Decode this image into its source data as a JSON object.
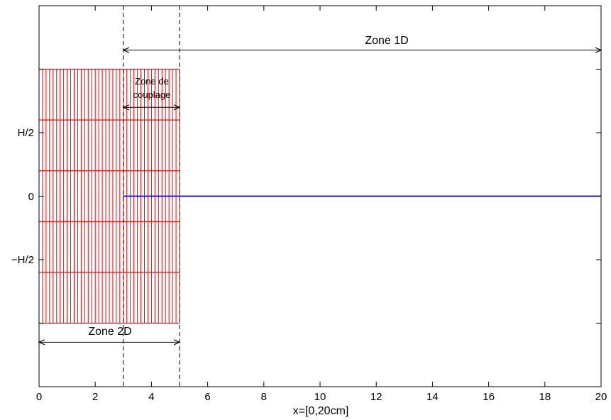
{
  "figure": {
    "x_axis": {
      "label": "x=[0,20cm]",
      "min": 0,
      "max": 20,
      "ticks": [
        0,
        2,
        4,
        6,
        8,
        10,
        12,
        14,
        16,
        18,
        20
      ]
    },
    "y_axis": {
      "min": -7.5,
      "max": 7.5,
      "ticks": [
        {
          "value": 5,
          "label": "H/2"
        },
        {
          "value": 0,
          "label": "0"
        },
        {
          "value": -5,
          "label": "−H/2"
        }
      ],
      "unlabeled_ticks": [
        7.5,
        5,
        2.5,
        0,
        -2.5,
        -5,
        -7.5
      ]
    },
    "mesh_2d": {
      "x_range": [
        0,
        5
      ],
      "y_range": [
        -5,
        5
      ],
      "columns": 40,
      "rows": 5,
      "color": "#ff0000"
    },
    "line_1d": {
      "x_range": [
        3,
        20
      ],
      "y": 0,
      "color": "#0000ff"
    },
    "coupling_boundaries": [
      3,
      5
    ],
    "zones": [
      {
        "label": "Zone 1D",
        "x_start": 3,
        "x_end": 20,
        "y": 5.75
      },
      {
        "label_lines": [
          "Zone de",
          "couplage"
        ],
        "x_start": 3,
        "x_end": 5,
        "y": 3.5
      },
      {
        "label": "Zone 2D",
        "x_start": 0,
        "x_end": 5,
        "y": -5.75
      }
    ]
  }
}
